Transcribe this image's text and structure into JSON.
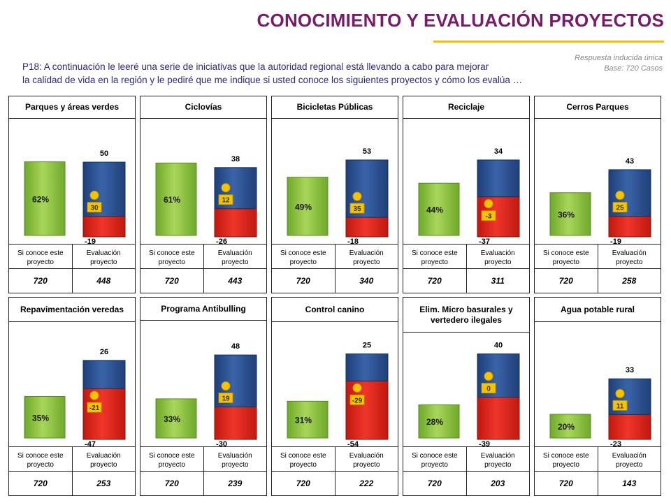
{
  "header": {
    "title": "CONOCIMIENTO Y EVALUACIÓN PROYECTOS",
    "meta_line1": "Respuesta inducida única",
    "meta_line2": "Base: 720 Casos",
    "question_line1": "P18: A continuación le leeré una serie de iniciativas que la autoridad regional está llevando a cabo para mejorar",
    "question_line2": " la calidad de vida en la región y le pediré que me indique si usted conoce los siguientes proyectos y cómo los evalúa …"
  },
  "colors": {
    "green": "#8cc63f",
    "blue": "#2e5290",
    "red": "#e2231a",
    "yellow": "#f5c400",
    "title": "#7a1a6a"
  },
  "column_labels": {
    "left": "Si conoce este proyecto",
    "right": "Evaluación proyecto"
  },
  "chart_data": [
    {
      "type": "bar",
      "title": "Parques y áreas verdes",
      "know_pct": "62%",
      "know_value": 62,
      "positive": 50,
      "negative": -19,
      "net": 30,
      "base_know": "720",
      "base_eval": "448"
    },
    {
      "type": "bar",
      "title": "Ciclovías",
      "know_pct": "61%",
      "know_value": 61,
      "positive": 38,
      "negative": -26,
      "net": 12,
      "base_know": "720",
      "base_eval": "443"
    },
    {
      "type": "bar",
      "title": "Bicicletas Públicas",
      "know_pct": "49%",
      "know_value": 49,
      "positive": 53,
      "negative": -18,
      "net": 35,
      "base_know": "720",
      "base_eval": "340"
    },
    {
      "type": "bar",
      "title": "Reciclaje",
      "know_pct": "44%",
      "know_value": 44,
      "positive": 34,
      "negative": -37,
      "net": -3,
      "base_know": "720",
      "base_eval": "311"
    },
    {
      "type": "bar",
      "title": "Cerros  Parques",
      "know_pct": "36%",
      "know_value": 36,
      "positive": 43,
      "negative": -19,
      "net": 25,
      "base_know": "720",
      "base_eval": "258"
    },
    {
      "type": "bar",
      "title": "Repavimentación veredas",
      "know_pct": "35%",
      "know_value": 35,
      "positive": 26,
      "negative": -47,
      "net": -21,
      "base_know": "720",
      "base_eval": "253"
    },
    {
      "type": "bar",
      "title": "Programa  Antibulling",
      "know_pct": "33%",
      "know_value": 33,
      "positive": 48,
      "negative": -30,
      "net": 19,
      "base_know": "720",
      "base_eval": "239"
    },
    {
      "type": "bar",
      "title": "Control canino",
      "know_pct": "31%",
      "know_value": 31,
      "positive": 25,
      "negative": -54,
      "net": -29,
      "base_know": "720",
      "base_eval": "222"
    },
    {
      "type": "bar",
      "title": "Elim. Micro basurales y vertedero ilegales",
      "know_pct": "28%",
      "know_value": 28,
      "positive": 40,
      "negative": -39,
      "net": 0,
      "base_know": "720",
      "base_eval": "203"
    },
    {
      "type": "bar",
      "title": "Agua potable rural",
      "know_pct": "20%",
      "know_value": 20,
      "positive": 33,
      "negative": -23,
      "net": 11,
      "base_know": "720",
      "base_eval": "143"
    }
  ]
}
